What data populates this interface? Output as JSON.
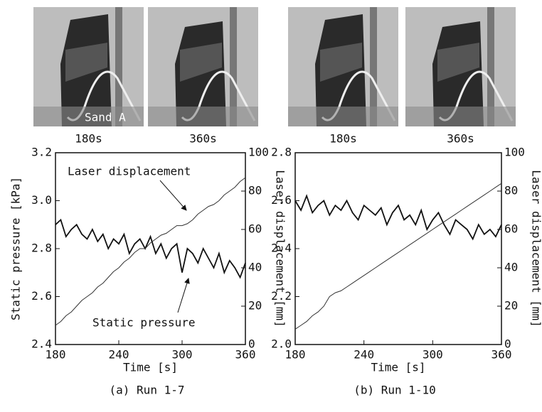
{
  "photos": [
    {
      "caption": "180s",
      "label": "Sand A"
    },
    {
      "caption": "360s"
    },
    {
      "caption": "180s"
    },
    {
      "caption": "360s"
    }
  ],
  "chart_data": [
    {
      "type": "line",
      "caption": "(a)  Run 1-7",
      "xlabel": "Time  [s]",
      "ylabel": "Static pressure  [kPa]",
      "y2label": "Laser displacement  [mm]",
      "annotations": [
        "Laser displacement",
        "Static pressure"
      ],
      "xlim": [
        180,
        360
      ],
      "xticks": [
        180,
        240,
        300,
        360
      ],
      "ylim": [
        2.4,
        3.2
      ],
      "yticks": [
        2.4,
        2.6,
        2.8,
        {
          "value": 3,
          "label": "3.0"
        },
        3.2
      ],
      "y2lim": [
        0,
        100
      ],
      "y2ticks": [
        0,
        20,
        40,
        60,
        80,
        100
      ],
      "x": [
        180,
        185,
        190,
        195,
        200,
        205,
        210,
        215,
        220,
        225,
        230,
        235,
        240,
        245,
        250,
        255,
        260,
        265,
        270,
        275,
        280,
        285,
        290,
        295,
        300,
        305,
        310,
        315,
        320,
        325,
        330,
        335,
        340,
        345,
        350,
        355,
        360
      ],
      "series": [
        {
          "name": "Static pressure",
          "color": "#111111",
          "values": [
            2.9,
            2.92,
            2.85,
            2.88,
            2.9,
            2.86,
            2.84,
            2.88,
            2.83,
            2.86,
            2.8,
            2.84,
            2.82,
            2.86,
            2.78,
            2.82,
            2.84,
            2.8,
            2.85,
            2.78,
            2.82,
            2.76,
            2.8,
            2.82,
            2.7,
            2.8,
            2.78,
            2.74,
            2.8,
            2.76,
            2.72,
            2.78,
            2.7,
            2.75,
            2.72,
            2.68,
            2.74
          ]
        },
        {
          "name": "Laser displacement",
          "color": "#333333",
          "axis": "y2",
          "values": [
            10,
            12,
            15,
            17,
            20,
            23,
            25,
            27,
            30,
            32,
            35,
            38,
            40,
            43,
            45,
            48,
            50,
            50,
            53,
            55,
            57,
            58,
            60,
            62,
            62,
            63,
            65,
            68,
            70,
            72,
            73,
            75,
            78,
            80,
            82,
            85,
            87
          ]
        }
      ]
    },
    {
      "type": "line",
      "caption": "(b)  Run 1-10",
      "xlabel": "Time  [s]",
      "y2label": "Laser displacement  [mm]",
      "xlim": [
        180,
        360
      ],
      "xticks": [
        180,
        240,
        300,
        360
      ],
      "ylim": [
        2.0,
        2.8
      ],
      "yticks": [
        {
          "value": 2,
          "label": "2.0"
        },
        2.2,
        2.4,
        2.6,
        2.8
      ],
      "y2lim": [
        0,
        100
      ],
      "y2ticks": [
        0,
        20,
        40,
        60,
        80,
        100
      ],
      "x": [
        180,
        185,
        190,
        195,
        200,
        205,
        210,
        215,
        220,
        225,
        230,
        235,
        240,
        245,
        250,
        255,
        260,
        265,
        270,
        275,
        280,
        285,
        290,
        295,
        300,
        305,
        310,
        315,
        320,
        325,
        330,
        335,
        340,
        345,
        350,
        355,
        360
      ],
      "series": [
        {
          "name": "Static pressure",
          "color": "#111111",
          "values": [
            2.6,
            2.56,
            2.62,
            2.55,
            2.58,
            2.6,
            2.54,
            2.58,
            2.56,
            2.6,
            2.55,
            2.52,
            2.58,
            2.56,
            2.54,
            2.57,
            2.5,
            2.55,
            2.58,
            2.52,
            2.54,
            2.5,
            2.56,
            2.48,
            2.52,
            2.55,
            2.5,
            2.46,
            2.52,
            2.5,
            2.48,
            2.44,
            2.5,
            2.46,
            2.48,
            2.45,
            2.5
          ]
        },
        {
          "name": "Laser displacement",
          "color": "#333333",
          "axis": "y2",
          "values": [
            8,
            10,
            12,
            15,
            17,
            20,
            25,
            27,
            28,
            30,
            32,
            34,
            36,
            38,
            40,
            42,
            44,
            46,
            48,
            50,
            52,
            54,
            56,
            58,
            60,
            62,
            64,
            66,
            68,
            70,
            72,
            74,
            76,
            78,
            80,
            82,
            84
          ]
        }
      ]
    }
  ]
}
